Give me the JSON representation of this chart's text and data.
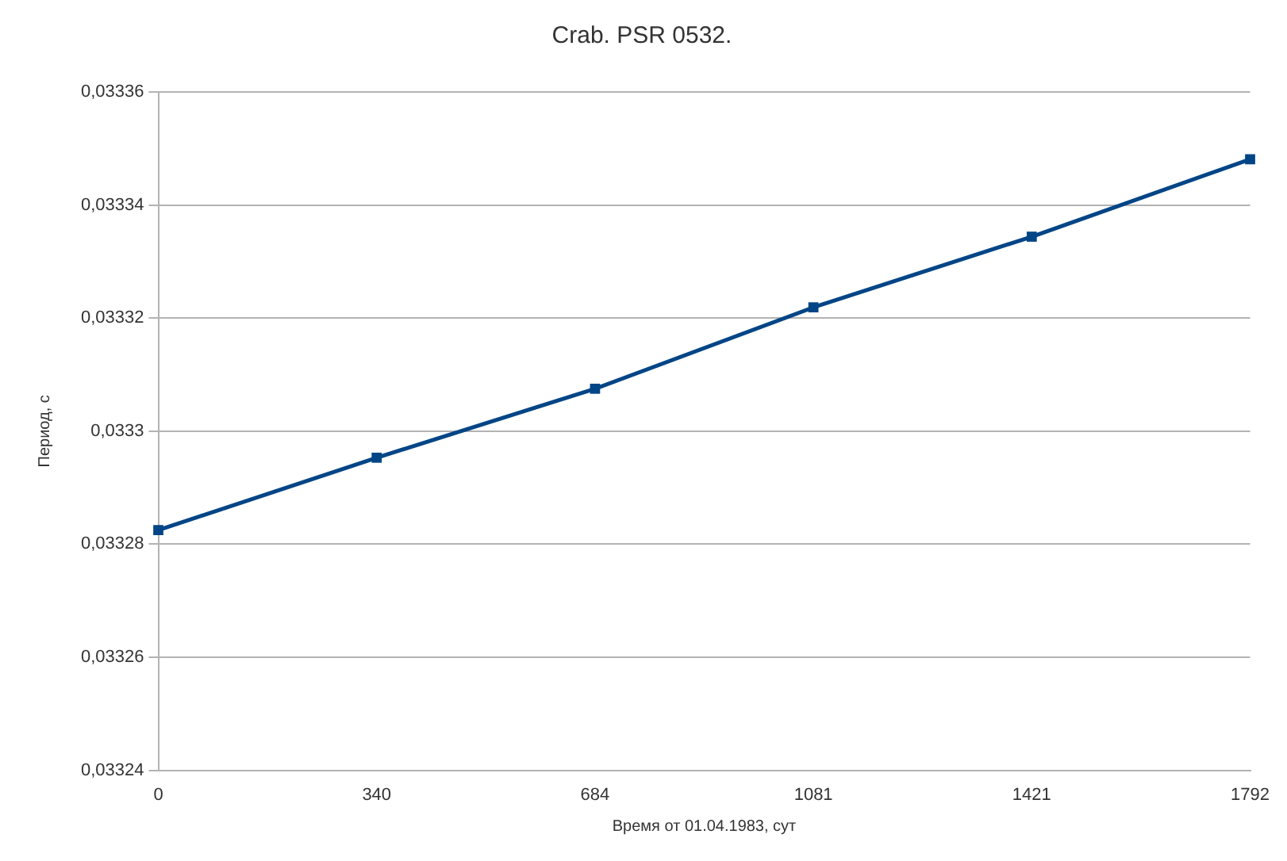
{
  "chart_data": {
    "type": "line",
    "title": "Crab. PSR 0532.",
    "xlabel": "Время от 01.04.1983, сут",
    "ylabel": "Период, с",
    "categories": [
      "0",
      "340",
      "684",
      "1081",
      "1421",
      "1792"
    ],
    "series": [
      {
        "color": "#004586",
        "values": [
          0.0332825,
          0.0332953,
          0.0333075,
          0.0333219,
          0.0333344,
          0.0333481
        ]
      }
    ],
    "ylim": [
      0.03324,
      0.03336
    ],
    "yticks": [
      {
        "value": 0.03324,
        "label": "0,03324"
      },
      {
        "value": 0.03326,
        "label": "0,03326"
      },
      {
        "value": 0.03328,
        "label": "0,03328"
      },
      {
        "value": 0.0333,
        "label": "0,0333"
      },
      {
        "value": 0.03332,
        "label": "0,03332"
      },
      {
        "value": 0.03334,
        "label": "0,03334"
      },
      {
        "value": 0.03336,
        "label": "0,03336"
      }
    ],
    "grid": "y",
    "marker": "square",
    "line_style": "solid",
    "legend": false
  }
}
